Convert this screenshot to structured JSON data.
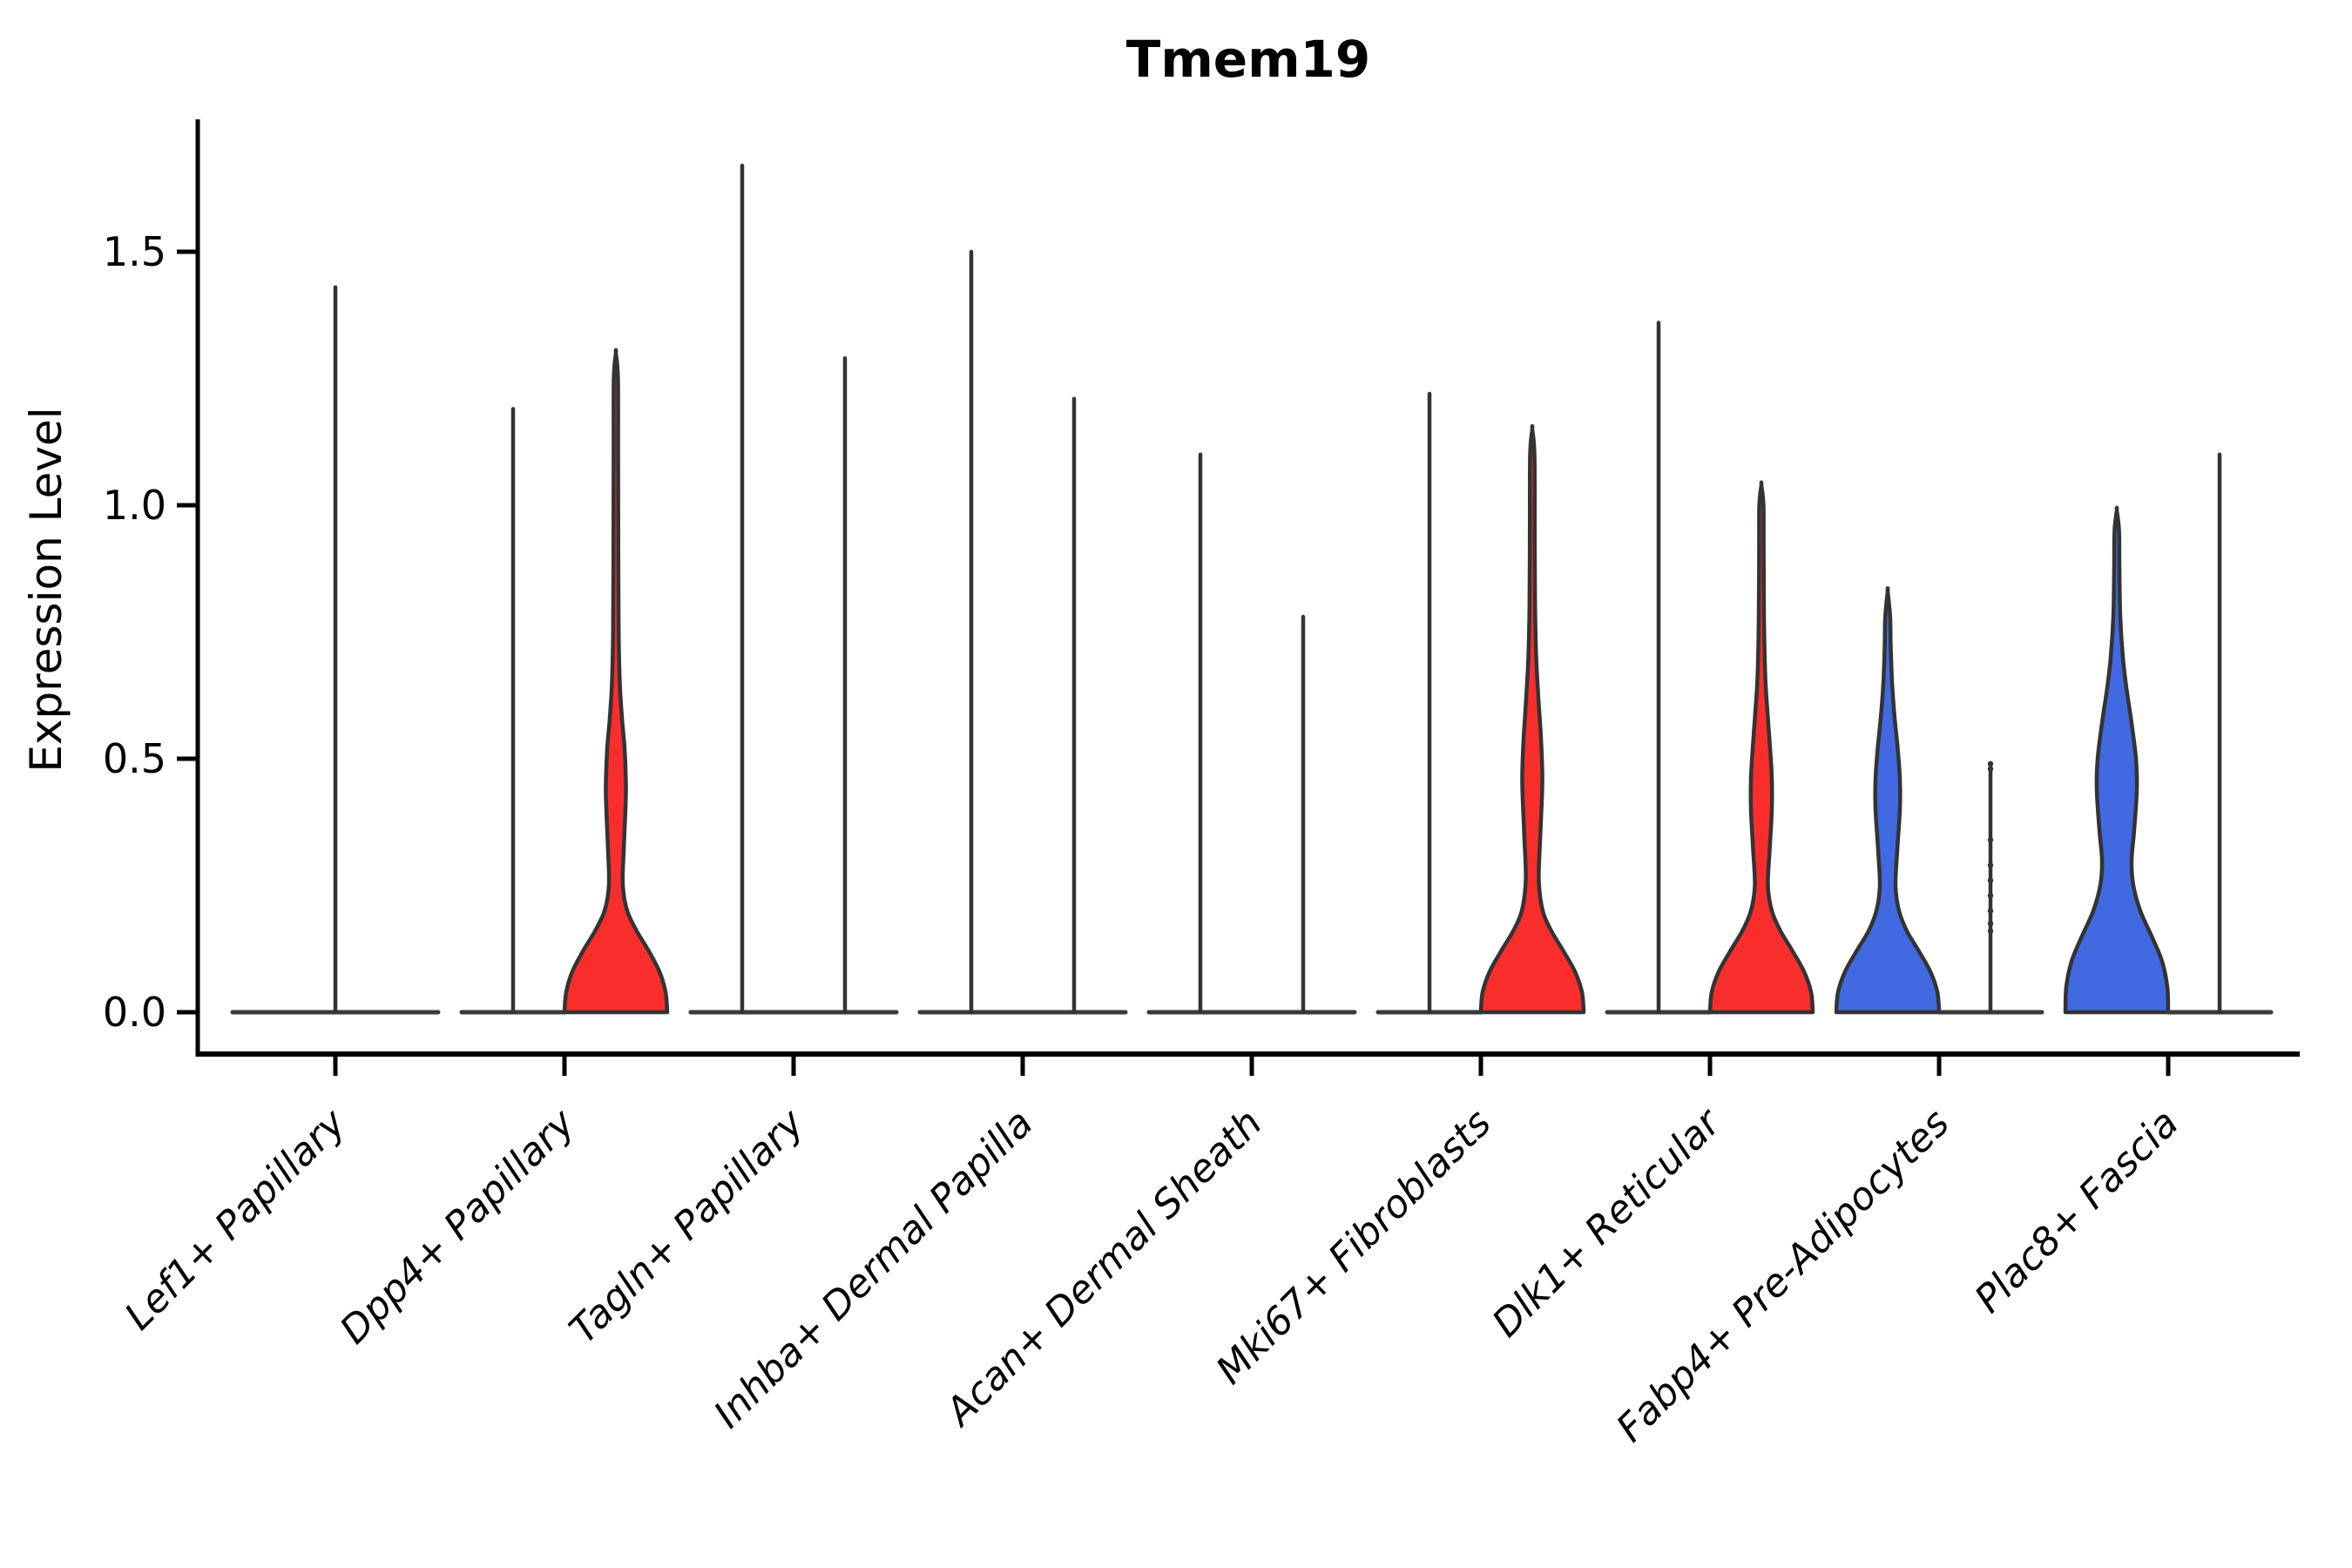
{
  "title": "Tmem19",
  "ylabel": "Expression Level",
  "colors": {
    "red": "#FA2D2D",
    "blue": "#4169E1",
    "outline": "#333333",
    "axis": "#000000",
    "background": "#FFFFFF"
  },
  "chart_data": {
    "type": "violin",
    "title": "Tmem19",
    "xlabel": "",
    "ylabel": "Expression Level",
    "ytick_labels": [
      "0.0",
      "0.5",
      "1.0",
      "1.5"
    ],
    "ytick_values": [
      0.0,
      0.5,
      1.0,
      1.5
    ],
    "ylim": [
      -0.08,
      1.76
    ],
    "grid": "off",
    "legend": "none",
    "categories": [
      "Lef1+ Papillary",
      "Dpp4+ Papillary",
      "Tagln+ Papillary",
      "Inhba+ Dermal Papilla",
      "Acan+ Dermal Sheath",
      "Mki67+ Fibroblasts",
      "Dlk1+ Reticular",
      "Fabp4+ Pre-Adipocytes",
      "Plac8+ Fascia"
    ],
    "violins": [
      {
        "category": "Lef1+ Papillary",
        "category_index": 0,
        "position": "center",
        "style": "line",
        "fill": "none",
        "max_expression": 1.43
      },
      {
        "category": "Dpp4+ Papillary",
        "category_index": 1,
        "position": "left",
        "style": "line",
        "fill": "none",
        "max_expression": 1.19
      },
      {
        "category": "Dpp4+ Papillary",
        "category_index": 1,
        "position": "right",
        "style": "shaped",
        "fill": "red",
        "max_expression": 1.3,
        "profile": [
          [
            0,
            59
          ],
          [
            0.04,
            57
          ],
          [
            0.08,
            50
          ],
          [
            0.12,
            38
          ],
          [
            0.16,
            24
          ],
          [
            0.2,
            13
          ],
          [
            0.25,
            8
          ],
          [
            0.32,
            9
          ],
          [
            0.4,
            11
          ],
          [
            0.45,
            11.5
          ],
          [
            0.52,
            10
          ],
          [
            0.58,
            7
          ],
          [
            0.65,
            4.5
          ],
          [
            0.75,
            3.2
          ],
          [
            0.9,
            2.8
          ],
          [
            1.1,
            2.6
          ],
          [
            1.25,
            2.4
          ],
          [
            1.3,
            0
          ]
        ]
      },
      {
        "category": "Tagln+ Papillary",
        "category_index": 2,
        "position": "left",
        "style": "line",
        "fill": "none",
        "max_expression": 1.67
      },
      {
        "category": "Tagln+ Papillary",
        "category_index": 2,
        "position": "right",
        "style": "line",
        "fill": "none",
        "max_expression": 1.29
      },
      {
        "category": "Inhba+ Dermal Papilla",
        "category_index": 3,
        "position": "left",
        "style": "line",
        "fill": "none",
        "max_expression": 1.5
      },
      {
        "category": "Inhba+ Dermal Papilla",
        "category_index": 3,
        "position": "right",
        "style": "line",
        "fill": "none",
        "max_expression": 1.21
      },
      {
        "category": "Acan+ Dermal Sheath",
        "category_index": 4,
        "position": "left",
        "style": "line",
        "fill": "none",
        "max_expression": 1.1
      },
      {
        "category": "Acan+ Dermal Sheath",
        "category_index": 4,
        "position": "right",
        "style": "line",
        "fill": "none",
        "max_expression": 0.78
      },
      {
        "category": "Mki67+ Fibroblasts",
        "category_index": 5,
        "position": "left",
        "style": "line",
        "fill": "none",
        "max_expression": 1.22
      },
      {
        "category": "Mki67+ Fibroblasts",
        "category_index": 5,
        "position": "right",
        "style": "shaped",
        "fill": "red",
        "max_expression": 1.15,
        "profile": [
          [
            0,
            59
          ],
          [
            0.04,
            57
          ],
          [
            0.08,
            49
          ],
          [
            0.12,
            36
          ],
          [
            0.16,
            22
          ],
          [
            0.2,
            12
          ],
          [
            0.26,
            7.5
          ],
          [
            0.34,
            9
          ],
          [
            0.42,
            11
          ],
          [
            0.47,
            11.5
          ],
          [
            0.54,
            10
          ],
          [
            0.62,
            7
          ],
          [
            0.7,
            4.5
          ],
          [
            0.8,
            3.2
          ],
          [
            0.95,
            2.8
          ],
          [
            1.1,
            2.5
          ],
          [
            1.15,
            0
          ]
        ]
      },
      {
        "category": "Dlk1+ Reticular",
        "category_index": 6,
        "position": "left",
        "style": "line",
        "fill": "none",
        "max_expression": 1.36
      },
      {
        "category": "Dlk1+ Reticular",
        "category_index": 6,
        "position": "right",
        "style": "shaped",
        "fill": "red",
        "max_expression": 1.04,
        "profile": [
          [
            0,
            59
          ],
          [
            0.04,
            57
          ],
          [
            0.08,
            49
          ],
          [
            0.12,
            36
          ],
          [
            0.16,
            22
          ],
          [
            0.2,
            12
          ],
          [
            0.25,
            7.5
          ],
          [
            0.32,
            9.5
          ],
          [
            0.4,
            12
          ],
          [
            0.46,
            12
          ],
          [
            0.52,
            10
          ],
          [
            0.58,
            7.5
          ],
          [
            0.66,
            4.5
          ],
          [
            0.78,
            3
          ],
          [
            0.92,
            2.6
          ],
          [
            1.0,
            2.4
          ],
          [
            1.04,
            0
          ]
        ]
      },
      {
        "category": "Fabp4+ Pre-Adipocytes",
        "category_index": 7,
        "position": "left",
        "style": "shaped",
        "fill": "blue",
        "max_expression": 0.83,
        "profile": [
          [
            0,
            59
          ],
          [
            0.04,
            57
          ],
          [
            0.08,
            49
          ],
          [
            0.12,
            36
          ],
          [
            0.16,
            22
          ],
          [
            0.2,
            13
          ],
          [
            0.25,
            9
          ],
          [
            0.32,
            11
          ],
          [
            0.4,
            14
          ],
          [
            0.46,
            14
          ],
          [
            0.52,
            11.5
          ],
          [
            0.58,
            8
          ],
          [
            0.65,
            5
          ],
          [
            0.72,
            3.5
          ],
          [
            0.78,
            2.8
          ],
          [
            0.83,
            0
          ]
        ]
      },
      {
        "category": "Fabp4+ Pre-Adipocytes",
        "category_index": 7,
        "position": "right",
        "style": "line-points",
        "fill": "none",
        "max_expression": 0.49,
        "points": [
          0.49,
          0.48,
          0.34,
          0.29,
          0.26,
          0.23,
          0.2,
          0.175,
          0.16
        ]
      },
      {
        "category": "Plac8+ Fascia",
        "category_index": 8,
        "position": "left",
        "style": "shaped",
        "fill": "blue",
        "max_expression": 0.99,
        "profile": [
          [
            0,
            59
          ],
          [
            0.05,
            58
          ],
          [
            0.1,
            52
          ],
          [
            0.15,
            40
          ],
          [
            0.2,
            27
          ],
          [
            0.25,
            19
          ],
          [
            0.3,
            17
          ],
          [
            0.36,
            20
          ],
          [
            0.44,
            23
          ],
          [
            0.5,
            22
          ],
          [
            0.57,
            17
          ],
          [
            0.64,
            11
          ],
          [
            0.7,
            7
          ],
          [
            0.78,
            4
          ],
          [
            0.88,
            3
          ],
          [
            0.95,
            2.6
          ],
          [
            0.99,
            0
          ]
        ]
      },
      {
        "category": "Plac8+ Fascia",
        "category_index": 8,
        "position": "right",
        "style": "line",
        "fill": "none",
        "max_expression": 1.1
      }
    ]
  }
}
